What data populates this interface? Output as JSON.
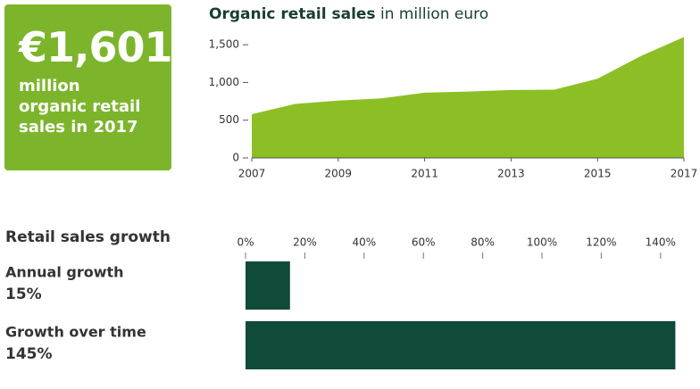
{
  "callout": {
    "figure": "€1,601",
    "text": "million organic retail sales in 2017"
  },
  "chart_data": [
    {
      "type": "area",
      "title": "Organic retail sales",
      "subtitle": "in million euro",
      "x": [
        2007,
        2008,
        2009,
        2010,
        2011,
        2012,
        2013,
        2014,
        2015,
        2016,
        2017
      ],
      "values": [
        580,
        715,
        760,
        790,
        865,
        880,
        900,
        905,
        1050,
        1350,
        1601
      ],
      "color": "#8cbf26",
      "xlim": [
        2007,
        2017
      ],
      "xticks": [
        2007,
        2009,
        2011,
        2013,
        2015,
        2017
      ],
      "ylim": [
        0,
        1620
      ],
      "yticks": [
        0,
        500,
        {
          "value": 1000,
          "label": "1,000"
        },
        {
          "value": 1500,
          "label": "1,500"
        }
      ]
    },
    {
      "type": "hbar",
      "title": "Retail sales growth",
      "categories": [
        "Annual growth",
        "Growth over time"
      ],
      "values": [
        15,
        145
      ],
      "value_labels": [
        "15%",
        "145%"
      ],
      "color": "#0f4a3a",
      "xlim": [
        0,
        150
      ],
      "xticks": [
        {
          "value": 0,
          "label": "0%"
        },
        {
          "value": 20,
          "label": "20%"
        },
        {
          "value": 40,
          "label": "40%"
        },
        {
          "value": 60,
          "label": "60%"
        },
        {
          "value": 80,
          "label": "80%"
        },
        {
          "value": 100,
          "label": "100%"
        },
        {
          "value": 120,
          "label": "120%"
        },
        {
          "value": 140,
          "label": "140%"
        }
      ]
    }
  ]
}
